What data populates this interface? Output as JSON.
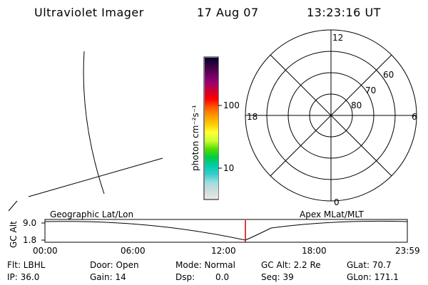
{
  "header": {
    "title": "Ultraviolet Imager",
    "date": "17 Aug 07",
    "time": "13:23:16 UT"
  },
  "colorbar": {
    "unit_label": "photon cm⁻²s⁻¹",
    "tick_labels": [
      "100",
      "10"
    ],
    "colors": [
      "#000033",
      "#3a0040",
      "#6a0060",
      "#9a0070",
      "#cc0033",
      "#ff0000",
      "#ff5a00",
      "#ff9900",
      "#ffcc00",
      "#ffff33",
      "#ccff33",
      "#55dd00",
      "#00cc44",
      "#00ccaa",
      "#33cccc",
      "#99dddd",
      "#ccdddd",
      "#e8e8e8"
    ]
  },
  "polar_plot": {
    "mlt_labels": {
      "top": "12",
      "left": "18",
      "right": "6",
      "bottom": "0"
    },
    "lat_labels": [
      "60",
      "70",
      "80"
    ]
  },
  "timeline": {
    "left_label": "Geographic Lat/Lon",
    "right_label": "Apex MLat/MLT",
    "axis_label": "GC Alt",
    "y_ticks": [
      "9.0",
      "1.8"
    ],
    "x_ticks": [
      "00:00",
      "06:00",
      "12:00",
      "18:00",
      "23:59"
    ],
    "marker_color": "#cc0000"
  },
  "info": {
    "flt": "Flt: LBHL",
    "ip": "IP: 36.0",
    "door": "Door: Open",
    "gain": "Gain: 14",
    "mode": "Mode: Normal",
    "dsp_label": "Dsp:",
    "dsp_value": "0.0",
    "gc_alt": "GC Alt: 2.2 Re",
    "seq": "Seq: 39",
    "glat": "GLat: 70.7",
    "glon": "GLon: 171.1"
  }
}
